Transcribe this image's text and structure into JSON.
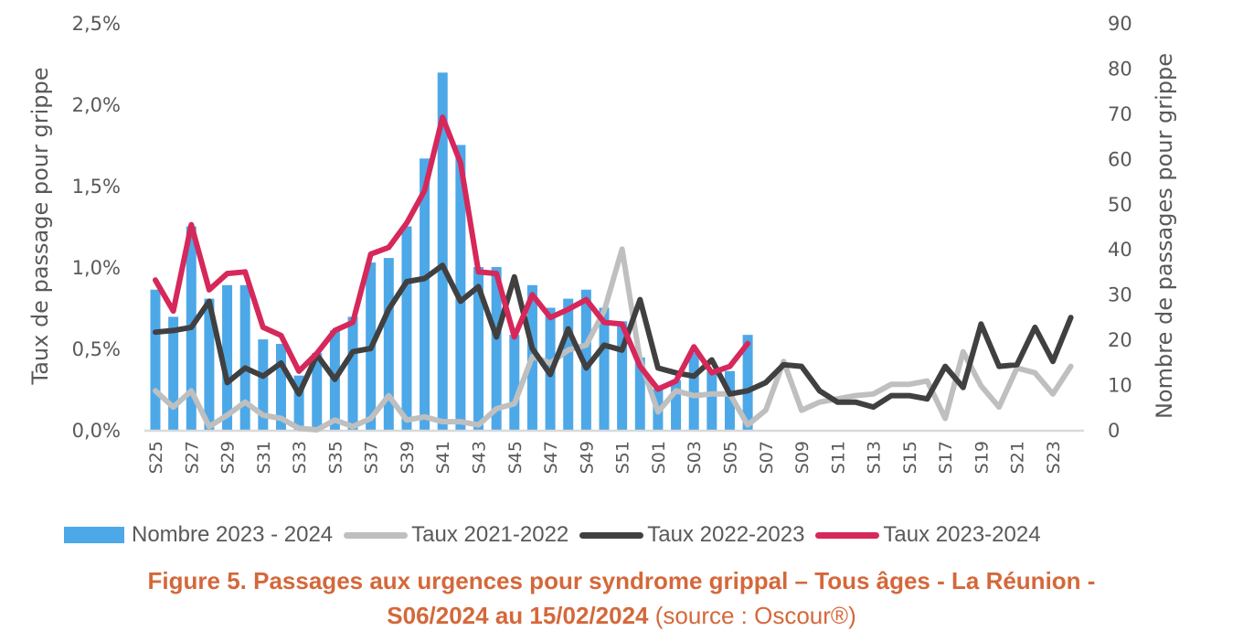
{
  "chart_data": {
    "type": "bar+line",
    "categories": [
      "S25",
      "S26",
      "S27",
      "S28",
      "S29",
      "S30",
      "S31",
      "S32",
      "S33",
      "S34",
      "S35",
      "S36",
      "S37",
      "S38",
      "S39",
      "S40",
      "S41",
      "S42",
      "S43",
      "S44",
      "S45",
      "S46",
      "S47",
      "S48",
      "S49",
      "S50",
      "S51",
      "S52",
      "S01",
      "S02",
      "S03",
      "S04",
      "S05",
      "S06",
      "S07",
      "S08",
      "S09",
      "S10",
      "S11",
      "S12",
      "S13",
      "S14",
      "S15",
      "S16",
      "S17",
      "S18",
      "S19",
      "S20",
      "S21",
      "S22",
      "S23",
      "S24"
    ],
    "xtick_labels": [
      "S25",
      "S27",
      "S29",
      "S31",
      "S33",
      "S35",
      "S37",
      "S39",
      "S41",
      "S43",
      "S45",
      "S47",
      "S49",
      "S51",
      "S01",
      "S03",
      "S05",
      "S07",
      "S09",
      "S11",
      "S13",
      "S15",
      "S17",
      "S19",
      "S21",
      "S23"
    ],
    "ylabel_left": "Taux de passage pour grippe",
    "ylabel_right": "Nombre de passages pour grippe",
    "ylim_left": [
      0,
      2.5
    ],
    "ylim_right": [
      0,
      90
    ],
    "yticks_left": [
      "0,0%",
      "0,5%",
      "1,0%",
      "1,5%",
      "2,0%",
      "2,5%"
    ],
    "yticks_right": [
      "0",
      "10",
      "20",
      "30",
      "40",
      "50",
      "60",
      "70",
      "80",
      "90"
    ],
    "legend_position": "bottom",
    "series": [
      {
        "name": "Nombre 2023 - 2024",
        "type": "bar",
        "axis": "right",
        "color": "#4DA8E8",
        "values": [
          31,
          25,
          45,
          29,
          32,
          32,
          20,
          19,
          12,
          17,
          22,
          25,
          37,
          38,
          45,
          60,
          79,
          63,
          36,
          36,
          21,
          32,
          27,
          29,
          31,
          27,
          24,
          16,
          9,
          11,
          17,
          13,
          13,
          21,
          null,
          null,
          null,
          null,
          null,
          null,
          null,
          null,
          null,
          null,
          null,
          null,
          null,
          null,
          null,
          null,
          null,
          null
        ]
      },
      {
        "name": "Taux 2021-2022",
        "type": "line",
        "axis": "left",
        "color": "#BFBFBF",
        "values": [
          0.24,
          0.14,
          0.24,
          0.02,
          0.09,
          0.17,
          0.09,
          0.07,
          0.01,
          0.0,
          0.06,
          0.02,
          0.07,
          0.21,
          0.06,
          0.08,
          0.05,
          0.05,
          0.03,
          0.13,
          0.16,
          0.45,
          0.41,
          0.49,
          0.52,
          0.73,
          1.11,
          0.43,
          0.11,
          0.24,
          0.21,
          0.22,
          0.22,
          0.03,
          0.12,
          0.42,
          0.12,
          0.17,
          0.19,
          0.21,
          0.22,
          0.28,
          0.28,
          0.3,
          0.07,
          0.48,
          0.27,
          0.14,
          0.38,
          0.35,
          0.22,
          0.39
        ]
      },
      {
        "name": "Taux 2022-2023",
        "type": "line",
        "axis": "left",
        "color": "#404040",
        "values": [
          0.6,
          0.61,
          0.63,
          0.79,
          0.29,
          0.38,
          0.33,
          0.41,
          0.22,
          0.46,
          0.31,
          0.48,
          0.5,
          0.74,
          0.91,
          0.93,
          1.01,
          0.79,
          0.88,
          0.57,
          0.94,
          0.5,
          0.34,
          0.62,
          0.38,
          0.52,
          0.49,
          0.8,
          0.38,
          0.35,
          0.33,
          0.43,
          0.22,
          0.24,
          0.29,
          0.4,
          0.39,
          0.24,
          0.17,
          0.17,
          0.14,
          0.21,
          0.21,
          0.19,
          0.39,
          0.26,
          0.65,
          0.39,
          0.4,
          0.63,
          0.42,
          0.69
        ]
      },
      {
        "name": "Taux 2023-2024",
        "type": "line",
        "axis": "left",
        "color": "#D6285A",
        "values": [
          0.92,
          0.73,
          1.26,
          0.86,
          0.96,
          0.97,
          0.63,
          0.58,
          0.36,
          0.47,
          0.61,
          0.66,
          1.08,
          1.12,
          1.27,
          1.47,
          1.92,
          1.64,
          0.97,
          0.96,
          0.57,
          0.83,
          0.69,
          0.74,
          0.8,
          0.66,
          0.65,
          0.39,
          0.25,
          0.3,
          0.51,
          0.35,
          0.39,
          0.53,
          null,
          null,
          null,
          null,
          null,
          null,
          null,
          null,
          null,
          null,
          null,
          null,
          null,
          null,
          null,
          null,
          null,
          null
        ]
      }
    ]
  },
  "caption": {
    "line1": "Figure 5. Passages aux urgences pour syndrome grippal – Tous âges - La Réunion -",
    "line2_bold": "S06/2024 au 15/02/2024",
    "line2_normal": " (source : Oscour®)",
    "color": "#D4683A"
  }
}
